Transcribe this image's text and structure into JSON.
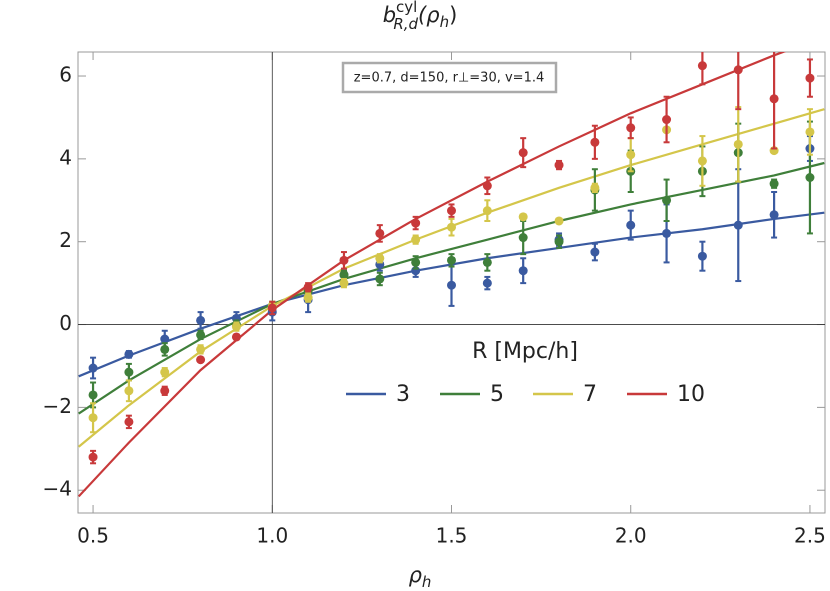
{
  "chart_data": {
    "type": "scatter",
    "title": [
      "b",
      "cyl",
      "R,d",
      "(ρ",
      "h",
      ")"
    ],
    "annotation": "z=0.7, d=150, r⊥=30, v=1.4",
    "x_label": [
      "ρ",
      "h"
    ],
    "legend_title": "R [Mpc/h]",
    "x": [
      0.5,
      0.6,
      0.7,
      0.8,
      0.9,
      1.0,
      1.1,
      1.2,
      1.3,
      1.4,
      1.5,
      1.6,
      1.7,
      1.8,
      1.9,
      2.0,
      2.1,
      2.2,
      2.3,
      2.4,
      2.5
    ],
    "fit_x": [
      0.46,
      0.6,
      0.8,
      1.0,
      1.2,
      1.4,
      1.6,
      1.8,
      2.0,
      2.2,
      2.4,
      2.54
    ],
    "series": [
      {
        "name": "3",
        "color": "#3a5aa0",
        "values": [
          -1.05,
          -0.72,
          -0.35,
          0.1,
          0.15,
          0.3,
          0.6,
          1.2,
          1.45,
          1.3,
          0.95,
          1.0,
          1.3,
          2.05,
          1.75,
          2.4,
          2.2,
          1.65,
          2.4,
          2.65,
          4.25
        ],
        "errors": [
          0.25,
          0.08,
          0.2,
          0.2,
          0.15,
          0.2,
          0.3,
          0.1,
          0.15,
          0.15,
          0.5,
          0.15,
          0.3,
          0.15,
          0.2,
          0.35,
          0.7,
          0.35,
          1.35,
          0.55,
          0.3
        ],
        "fit_values": [
          -1.25,
          -0.75,
          -0.1,
          0.5,
          0.95,
          1.3,
          1.6,
          1.85,
          2.1,
          2.3,
          2.55,
          2.7
        ]
      },
      {
        "name": "5",
        "color": "#3f7f3a",
        "values": [
          -1.7,
          -1.15,
          -0.6,
          -0.25,
          0.0,
          0.45,
          0.8,
          1.2,
          1.1,
          1.5,
          1.55,
          1.5,
          2.1,
          2.0,
          3.25,
          3.7,
          3.0,
          3.7,
          4.15,
          3.4,
          3.55
        ],
        "errors": [
          0.3,
          0.2,
          0.15,
          0.1,
          0.1,
          0.1,
          0.1,
          0.1,
          0.15,
          0.15,
          0.15,
          0.2,
          0.4,
          0.15,
          0.5,
          0.5,
          0.5,
          0.6,
          0.7,
          0.1,
          1.35
        ],
        "fit_values": [
          -2.15,
          -1.35,
          -0.35,
          0.5,
          1.1,
          1.6,
          2.05,
          2.5,
          2.9,
          3.25,
          3.6,
          3.9
        ]
      },
      {
        "name": "7",
        "color": "#d4c64a",
        "values": [
          -2.25,
          -1.6,
          -1.15,
          -0.6,
          -0.05,
          0.45,
          0.65,
          1.0,
          1.6,
          2.05,
          2.35,
          2.75,
          2.6,
          2.5,
          3.3,
          4.1,
          4.7,
          3.95,
          4.35,
          4.2,
          4.65
        ],
        "errors": [
          0.35,
          0.25,
          0.1,
          0.1,
          0.1,
          0.1,
          0.1,
          0.1,
          0.1,
          0.1,
          0.2,
          0.25,
          0.05,
          0.05,
          0.1,
          0.4,
          0.05,
          0.6,
          0.9,
          0.05,
          0.55
        ],
        "fit_values": [
          -2.95,
          -1.95,
          -0.65,
          0.45,
          1.35,
          2.05,
          2.7,
          3.3,
          3.85,
          4.35,
          4.85,
          5.2
        ]
      },
      {
        "name": "10",
        "color": "#c8393a",
        "values": [
          -3.2,
          -2.35,
          -1.6,
          -0.85,
          -0.3,
          0.4,
          0.9,
          1.55,
          2.2,
          2.45,
          2.75,
          3.35,
          4.15,
          3.85,
          4.4,
          4.75,
          4.95,
          6.25,
          6.15,
          5.45,
          5.95
        ],
        "errors": [
          0.15,
          0.15,
          0.1,
          0.05,
          0.05,
          0.15,
          0.1,
          0.2,
          0.2,
          0.15,
          0.15,
          0.2,
          0.35,
          0.1,
          0.4,
          0.25,
          0.55,
          0.45,
          0.95,
          1.2,
          0.45
        ],
        "fit_values": [
          -4.15,
          -2.85,
          -1.1,
          0.35,
          1.55,
          2.55,
          3.45,
          4.3,
          5.1,
          5.8,
          6.5,
          6.95
        ]
      }
    ],
    "xlim": [
      0.458,
      2.542
    ],
    "ylim": [
      -4.55,
      6.58
    ],
    "xticks": [
      0.5,
      {
        "value": 1.0,
        "label": "1.0"
      },
      1.5,
      {
        "value": 2.0,
        "label": "2.0"
      },
      2.5
    ],
    "yticks": [
      {
        "value": -4,
        "label": "−4"
      },
      {
        "value": -2,
        "label": "−2"
      },
      0,
      2,
      4,
      6
    ],
    "grid": false
  }
}
